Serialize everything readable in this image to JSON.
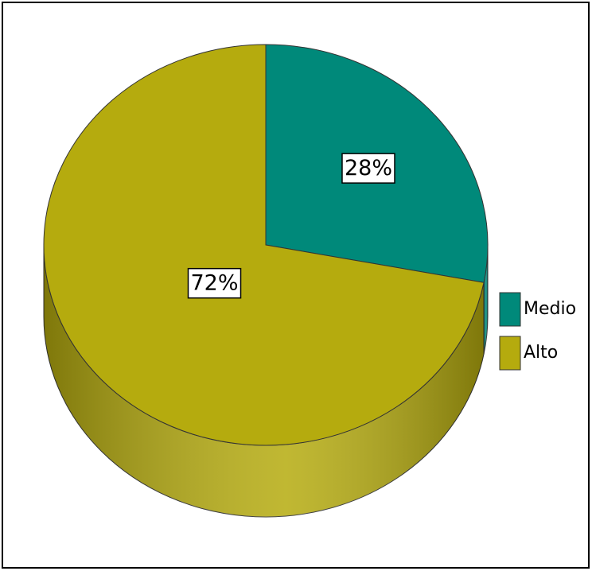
{
  "chart_data": {
    "type": "pie",
    "categories": [
      "Medio",
      "Alto"
    ],
    "values": [
      28,
      72
    ],
    "value_labels": [
      "28%",
      "72%"
    ],
    "colors": [
      "#00897a",
      "#b5ab0e"
    ],
    "legend": "right"
  }
}
